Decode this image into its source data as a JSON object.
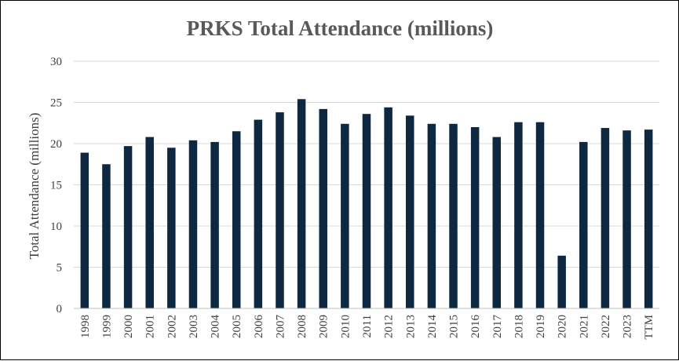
{
  "chart_data": {
    "type": "bar",
    "title": "PRKS Total Attendance (millions)",
    "xlabel": "",
    "ylabel": "Total Attendance (millions)",
    "ylim": [
      0,
      30
    ],
    "yticks": [
      "0",
      "5",
      "10",
      "15",
      "20",
      "25",
      "30"
    ],
    "grid": true,
    "bar_color": "#0e2841",
    "categories": [
      "1998",
      "1999",
      "2000",
      "2001",
      "2002",
      "2003",
      "2004",
      "2005",
      "2006",
      "2007",
      "2008",
      "2009",
      "2010",
      "2011",
      "2012",
      "2013",
      "2014",
      "2015",
      "2016",
      "2017",
      "2018",
      "2019",
      "2020",
      "2021",
      "2022",
      "2023",
      "TTM"
    ],
    "values": [
      18.9,
      17.5,
      19.7,
      20.8,
      19.5,
      20.4,
      20.2,
      21.5,
      22.9,
      23.8,
      25.4,
      24.2,
      22.4,
      23.6,
      24.4,
      23.4,
      22.4,
      22.4,
      22.0,
      20.8,
      22.6,
      22.6,
      6.4,
      20.2,
      21.9,
      21.6,
      21.7
    ]
  }
}
